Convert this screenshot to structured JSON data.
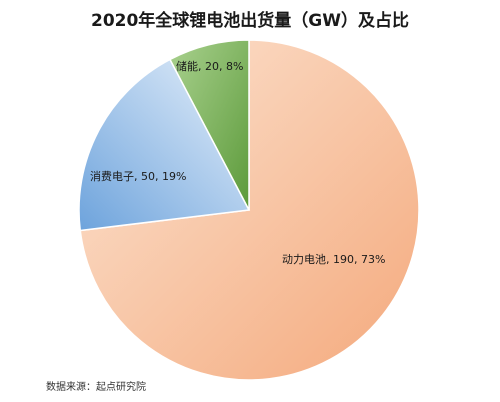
{
  "chart_data": {
    "type": "pie",
    "title": "2020年全球锂电池出货量（GW）及占比",
    "unit": "GW",
    "slices": [
      {
        "name": "动力电池",
        "value": 190,
        "percent": "73%",
        "label": "动力电池, 190, 73%",
        "colors": [
          "#fce4d2",
          "#f4a97c"
        ]
      },
      {
        "name": "消费电子",
        "value": 50,
        "percent": "19%",
        "label": "消费电子, 50, 19%",
        "colors": [
          "#e8f1fb",
          "#6da3dc"
        ]
      },
      {
        "name": "储能",
        "value": 20,
        "percent": "8%",
        "label": "储能, 20, 8%",
        "colors": [
          "#a9d18e",
          "#5c9a3a"
        ]
      }
    ],
    "source": "数据来源：起点研究院"
  }
}
